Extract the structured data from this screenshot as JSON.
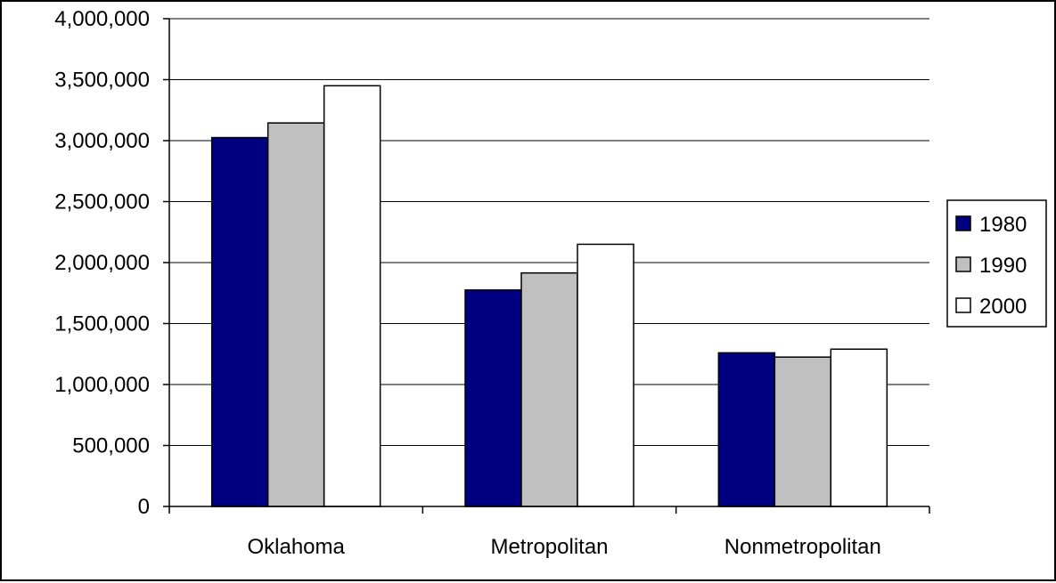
{
  "chart_data": {
    "type": "bar",
    "categories": [
      "Oklahoma",
      "Metropolitan",
      "Nonmetropolitan"
    ],
    "series": [
      {
        "name": "1980",
        "values": [
          3025000,
          1775000,
          1260000
        ],
        "color": "#000080"
      },
      {
        "name": "1990",
        "values": [
          3145000,
          1915000,
          1225000
        ],
        "color": "#c0c0c0"
      },
      {
        "name": "2000",
        "values": [
          3450000,
          2150000,
          1290000
        ],
        "color": "#ffffff"
      }
    ],
    "ylim": [
      0,
      4000000
    ],
    "yticks": [
      0,
      500000,
      1000000,
      1500000,
      2000000,
      2500000,
      3000000,
      3500000,
      4000000
    ],
    "ytick_labels": [
      "0",
      "500,000",
      "1,000,000",
      "1,500,000",
      "2,000,000",
      "2,500,000",
      "3,000,000",
      "3,500,000",
      "4,000,000"
    ],
    "title": "",
    "xlabel": "",
    "ylabel": "",
    "grid": true,
    "legend_position": "right"
  }
}
